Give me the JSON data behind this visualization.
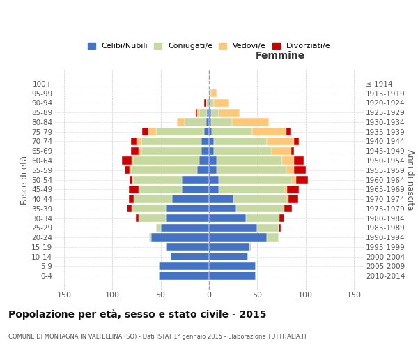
{
  "age_groups": [
    "0-4",
    "5-9",
    "10-14",
    "15-19",
    "20-24",
    "25-29",
    "30-34",
    "35-39",
    "40-44",
    "45-49",
    "50-54",
    "55-59",
    "60-64",
    "65-69",
    "70-74",
    "75-79",
    "80-84",
    "85-89",
    "90-94",
    "95-99",
    "100+"
  ],
  "birth_years": [
    "2010-2014",
    "2005-2009",
    "2000-2004",
    "1995-1999",
    "1990-1994",
    "1985-1989",
    "1980-1984",
    "1975-1979",
    "1970-1974",
    "1965-1969",
    "1960-1964",
    "1955-1959",
    "1950-1954",
    "1945-1949",
    "1940-1944",
    "1935-1939",
    "1930-1934",
    "1925-1929",
    "1920-1924",
    "1915-1919",
    "≤ 1914"
  ],
  "males": {
    "celibi": [
      52,
      52,
      40,
      45,
      60,
      50,
      45,
      45,
      38,
      28,
      28,
      12,
      10,
      8,
      8,
      5,
      3,
      2,
      1,
      0,
      0
    ],
    "coniugati": [
      0,
      0,
      0,
      0,
      2,
      5,
      28,
      35,
      40,
      45,
      50,
      68,
      68,
      62,
      62,
      50,
      22,
      8,
      2,
      0,
      0
    ],
    "vedovi": [
      0,
      0,
      0,
      0,
      0,
      0,
      0,
      0,
      0,
      0,
      1,
      2,
      2,
      3,
      5,
      8,
      8,
      2,
      0,
      0,
      0
    ],
    "divorziati": [
      0,
      0,
      0,
      0,
      0,
      0,
      3,
      5,
      5,
      10,
      3,
      5,
      10,
      8,
      6,
      6,
      0,
      2,
      2,
      0,
      0
    ]
  },
  "females": {
    "nubili": [
      48,
      48,
      40,
      42,
      60,
      50,
      38,
      28,
      25,
      10,
      10,
      8,
      8,
      5,
      5,
      3,
      2,
      2,
      1,
      0,
      0
    ],
    "coniugate": [
      0,
      0,
      0,
      2,
      12,
      22,
      35,
      50,
      55,
      68,
      75,
      72,
      68,
      60,
      55,
      42,
      22,
      8,
      4,
      2,
      0
    ],
    "vedove": [
      0,
      0,
      0,
      0,
      0,
      0,
      0,
      0,
      2,
      3,
      5,
      8,
      12,
      20,
      28,
      35,
      38,
      22,
      15,
      6,
      0
    ],
    "divorziate": [
      0,
      0,
      0,
      0,
      0,
      2,
      5,
      8,
      10,
      12,
      12,
      12,
      10,
      3,
      5,
      4,
      0,
      0,
      0,
      0,
      0
    ]
  },
  "color_celibi": "#4472C4",
  "color_coniugati": "#C6D9A0",
  "color_vedovi": "#FFC77A",
  "color_divorziati": "#CC0000",
  "bg_color": "#ffffff",
  "grid_color": "#cccccc",
  "title": "Popolazione per età, sesso e stato civile - 2015",
  "subtitle": "COMUNE DI MONTAGNA IN VALTELLINA (SO) - Dati ISTAT 1° gennaio 2015 - Elaborazione TUTTITALIA.IT",
  "xlabel_right": "Femmine",
  "ylabel_left": "Fasce di età",
  "ylabel_right": "Anni di nascita",
  "xlim": 160,
  "legend_labels": [
    "Celibi/Nubili",
    "Coniugati/e",
    "Vedovi/e",
    "Divorziati/e"
  ]
}
